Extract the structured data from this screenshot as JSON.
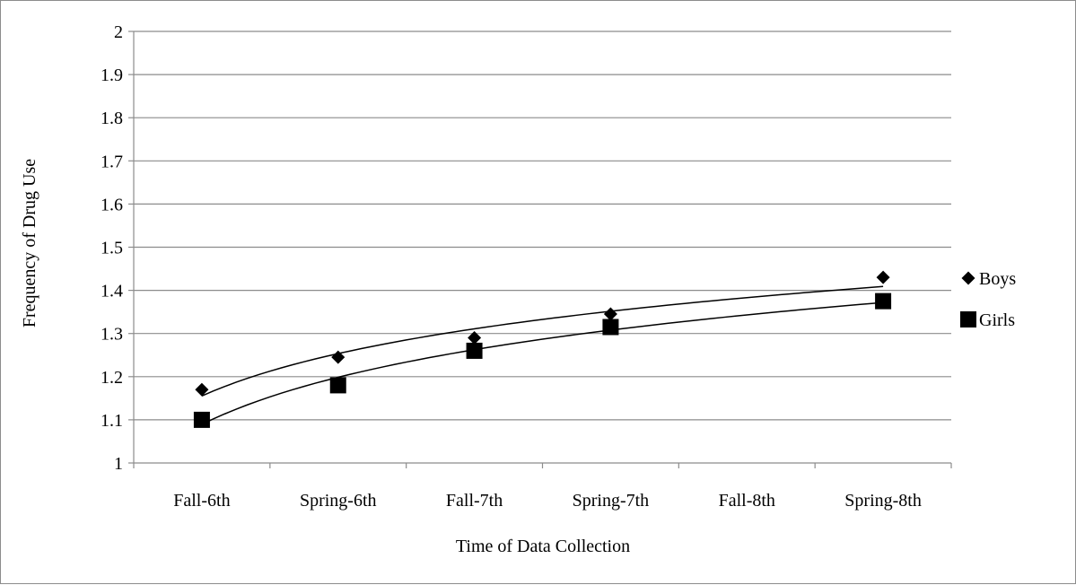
{
  "chart_data": {
    "type": "scatter",
    "title": "",
    "xlabel": "Time of Data Collection",
    "ylabel": "Frequency of Drug Use",
    "categories": [
      "Fall-6th",
      "Spring-6th",
      "Fall-7th",
      "Spring-7th",
      "Fall-8th",
      "Spring-8th"
    ],
    "ylim": [
      1,
      2
    ],
    "yticks": [
      "1",
      "1.1",
      "1.2",
      "1.3",
      "1.4",
      "1.5",
      "1.6",
      "1.7",
      "1.8",
      "1.9",
      "2"
    ],
    "grid": true,
    "legend_position": "right",
    "trendline": "logarithmic",
    "series": [
      {
        "name": "Boys",
        "marker": "diamond",
        "color": "#000000",
        "x": [
          "Fall-6th",
          "Spring-6th",
          "Fall-7th",
          "Spring-7th",
          "Spring-8th"
        ],
        "values": [
          1.17,
          1.245,
          1.29,
          1.345,
          1.43
        ]
      },
      {
        "name": "Girls",
        "marker": "square",
        "color": "#000000",
        "x": [
          "Fall-6th",
          "Spring-6th",
          "Fall-7th",
          "Spring-7th",
          "Spring-8th"
        ],
        "values": [
          1.1,
          1.18,
          1.26,
          1.315,
          1.375
        ]
      }
    ]
  }
}
